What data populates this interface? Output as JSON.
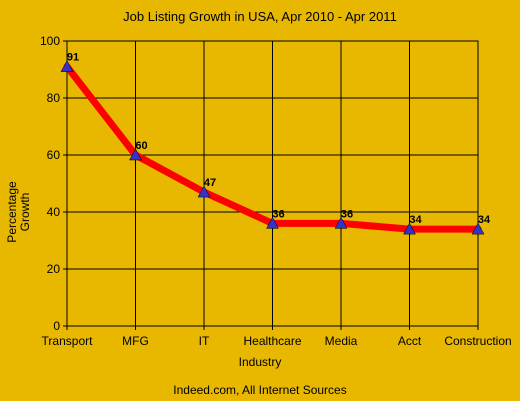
{
  "chart_data": {
    "type": "line",
    "title": "Job Listing Growth in USA, Apr 2010 - Apr 2011",
    "xlabel": "Industry",
    "ylabel_lines": [
      "Percentage",
      "Growth"
    ],
    "categories": [
      "Transport",
      "MFG",
      "IT",
      "Healthcare",
      "Media",
      "Acct",
      "Construction"
    ],
    "series": [
      {
        "values": [
          91,
          60,
          47,
          36,
          36,
          34,
          34
        ]
      }
    ],
    "ylim": [
      0,
      100
    ],
    "yticks": [
      0,
      20,
      40,
      60,
      80,
      100
    ],
    "grid": true,
    "line_color": "#ff0000",
    "marker_color": "#3333cc",
    "marker": "triangle",
    "background_color": "#e8b800",
    "data_labels": true
  },
  "footer": {
    "source": "Indeed.com, All Internet Sources"
  }
}
